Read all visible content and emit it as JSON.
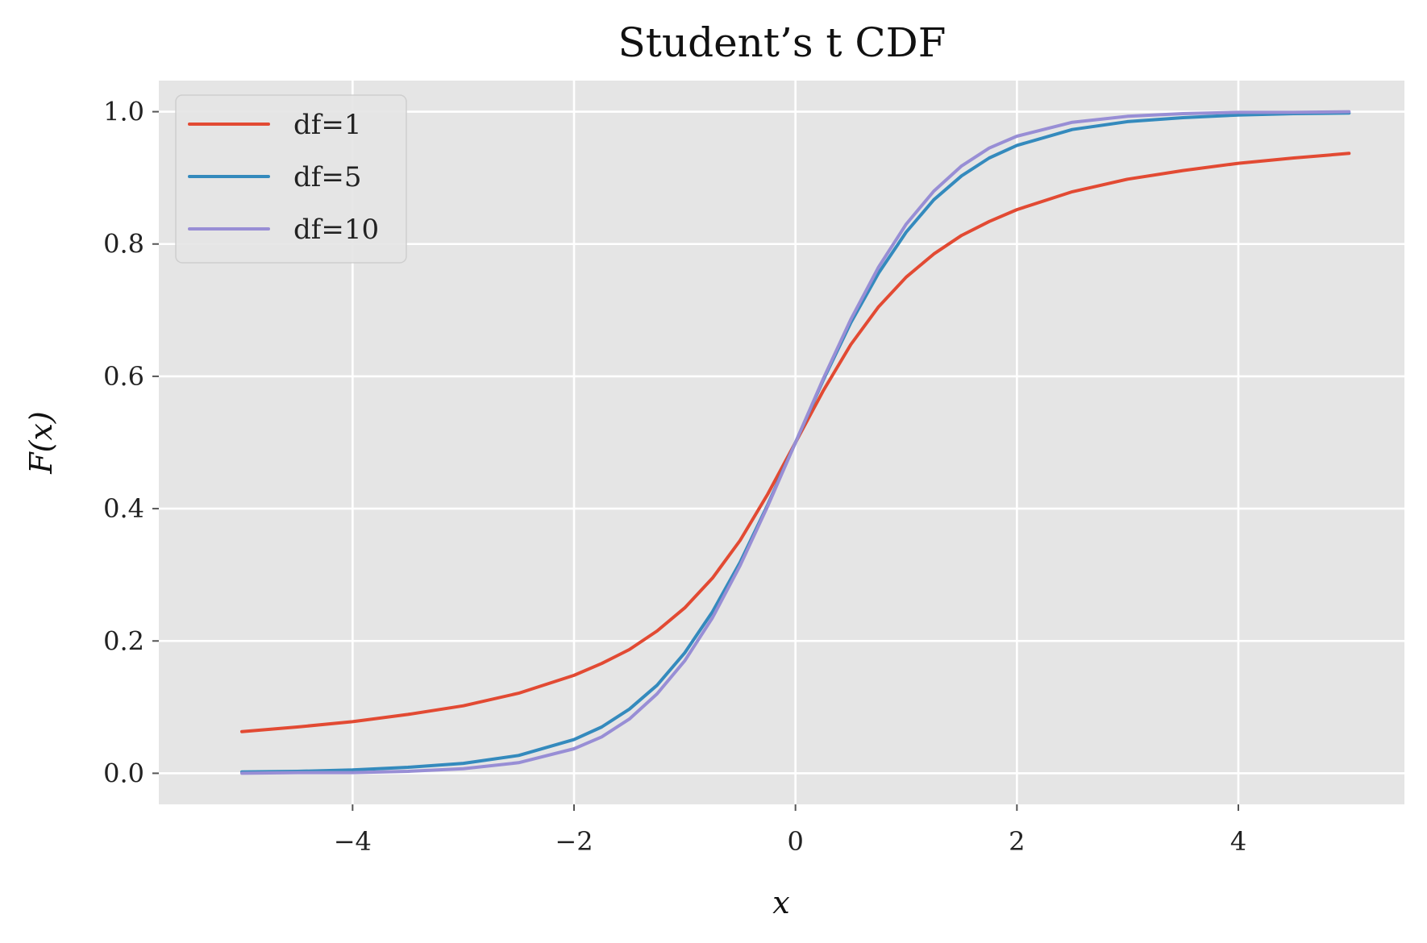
{
  "chart_data": {
    "type": "line",
    "title": "Student’s t CDF",
    "xlabel": "x",
    "ylabel": "F(x)",
    "xlim": [
      -5.75,
      5.5
    ],
    "ylim": [
      -0.047,
      1.047
    ],
    "xticks": [
      -4,
      -2,
      0,
      2,
      4
    ],
    "xtick_labels": [
      "−4",
      "−2",
      "0",
      "2",
      "4"
    ],
    "yticks": [
      0.0,
      0.2,
      0.4,
      0.6,
      0.8,
      1.0
    ],
    "ytick_labels": [
      "0.0",
      "0.2",
      "0.4",
      "0.6",
      "0.8",
      "1.0"
    ],
    "grid": true,
    "legend_position": "top-left",
    "background": "#e5e5e5",
    "x": [
      -5,
      -4.5,
      -4,
      -3.5,
      -3,
      -2.5,
      -2,
      -1.75,
      -1.5,
      -1.25,
      -1,
      -0.75,
      -0.5,
      -0.25,
      0,
      0.25,
      0.5,
      0.75,
      1,
      1.25,
      1.5,
      1.75,
      2,
      2.5,
      3,
      3.5,
      4,
      4.5,
      5
    ],
    "series": [
      {
        "name": "df=1",
        "color": "#e24a33",
        "values": [
          0.063,
          0.07,
          0.078,
          0.089,
          0.102,
          0.121,
          0.148,
          0.166,
          0.187,
          0.215,
          0.25,
          0.295,
          0.352,
          0.422,
          0.5,
          0.578,
          0.648,
          0.705,
          0.75,
          0.785,
          0.813,
          0.834,
          0.852,
          0.879,
          0.898,
          0.911,
          0.922,
          0.93,
          0.937
        ]
      },
      {
        "name": "df=5",
        "color": "#348abd",
        "values": [
          0.002,
          0.003,
          0.005,
          0.009,
          0.015,
          0.027,
          0.051,
          0.07,
          0.097,
          0.133,
          0.182,
          0.244,
          0.319,
          0.406,
          0.5,
          0.594,
          0.681,
          0.756,
          0.818,
          0.867,
          0.903,
          0.93,
          0.949,
          0.973,
          0.985,
          0.991,
          0.995,
          0.997,
          0.998
        ]
      },
      {
        "name": "df=10",
        "color": "#988ed5",
        "values": [
          0.0,
          0.001,
          0.001,
          0.003,
          0.007,
          0.016,
          0.037,
          0.055,
          0.082,
          0.12,
          0.17,
          0.235,
          0.314,
          0.404,
          0.5,
          0.596,
          0.686,
          0.765,
          0.83,
          0.88,
          0.918,
          0.945,
          0.963,
          0.984,
          0.993,
          0.997,
          0.999,
          0.999,
          1.0
        ]
      }
    ]
  }
}
